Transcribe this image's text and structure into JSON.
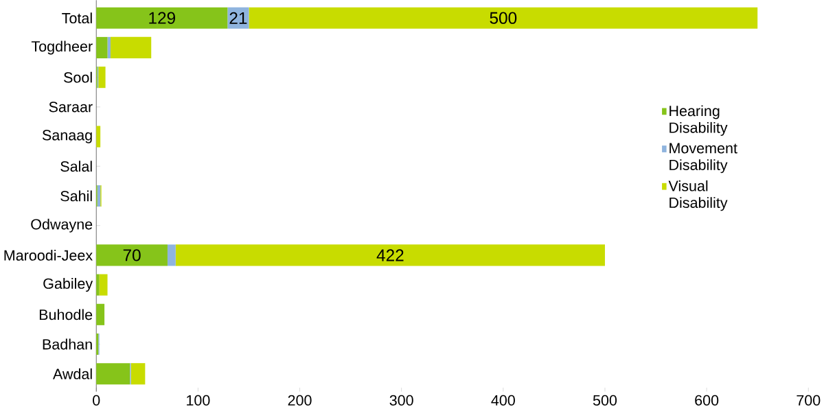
{
  "chart_data": {
    "type": "bar",
    "orientation": "horizontal",
    "stacked": true,
    "categories": [
      "Total",
      "Togdheer",
      "Sool",
      "Saraar",
      "Sanaag",
      "Salal",
      "Sahil",
      "Odwayne",
      "Maroodi-Jeex",
      "Gabiley",
      "Buhodle",
      "Badhan",
      "Awdal"
    ],
    "series": [
      {
        "name": "Hearing Disability",
        "color": "#86c41a",
        "values": [
          129,
          11,
          1,
          0,
          0,
          0,
          1,
          0,
          70,
          3,
          8,
          2,
          33
        ],
        "value_labels": [
          "129",
          null,
          null,
          null,
          null,
          null,
          null,
          null,
          "70",
          null,
          null,
          null,
          null
        ]
      },
      {
        "name": "Movement Disability",
        "color": "#8fb4de",
        "values": [
          21,
          3,
          1,
          0,
          0,
          0,
          3,
          0,
          8,
          0,
          0,
          1,
          1
        ],
        "value_labels": [
          "21",
          null,
          null,
          null,
          null,
          null,
          null,
          null,
          null,
          null,
          null,
          null,
          null
        ]
      },
      {
        "name": "Visual Disability",
        "color": "#c8dc00",
        "values": [
          500,
          40,
          7,
          0,
          4,
          0,
          1,
          0,
          422,
          8,
          0,
          0,
          14
        ],
        "value_labels": [
          "500",
          null,
          null,
          null,
          null,
          null,
          null,
          null,
          "422",
          null,
          null,
          null,
          null
        ]
      }
    ],
    "xlim": [
      0,
      700
    ],
    "xticks": [
      0,
      100,
      200,
      300,
      400,
      500,
      600,
      700
    ],
    "grid": false,
    "legend": "right"
  }
}
